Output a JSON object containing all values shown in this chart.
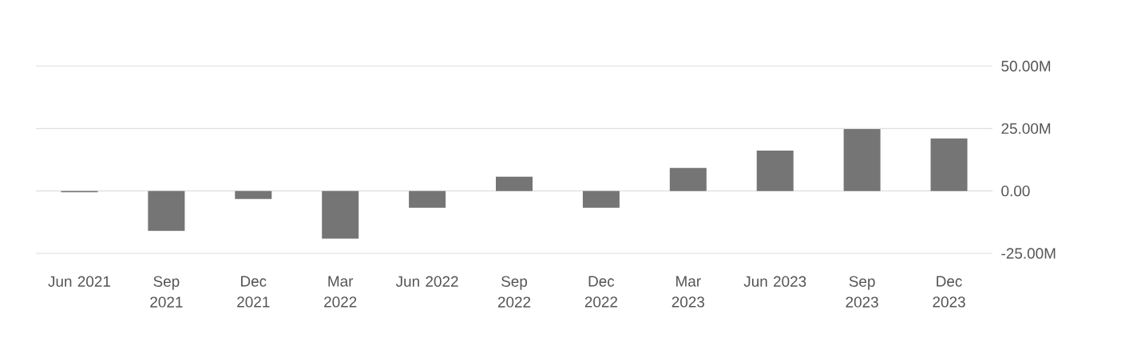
{
  "chart_data": {
    "type": "bar",
    "categories": [
      "Jun 2021",
      "Sep 2021",
      "Dec 2021",
      "Mar 2022",
      "Jun 2022",
      "Sep 2022",
      "Dec 2022",
      "Mar 2023",
      "Jun 2023",
      "Sep 2023",
      "Dec 2023"
    ],
    "values": [
      -0.5,
      -16,
      -3.2,
      -19.1,
      -6.7,
      5.7,
      -6.7,
      9.2,
      16.2,
      24.8,
      21
    ],
    "color": "#757575",
    "ylim": [
      -25,
      50
    ],
    "yticks": [
      {
        "value": -25,
        "label": "-25.00M"
      },
      {
        "value": 0,
        "label": "0.00"
      },
      {
        "value": 25,
        "label": "25.00M"
      },
      {
        "value": 50,
        "label": "50.00M"
      }
    ],
    "grid": "y"
  }
}
